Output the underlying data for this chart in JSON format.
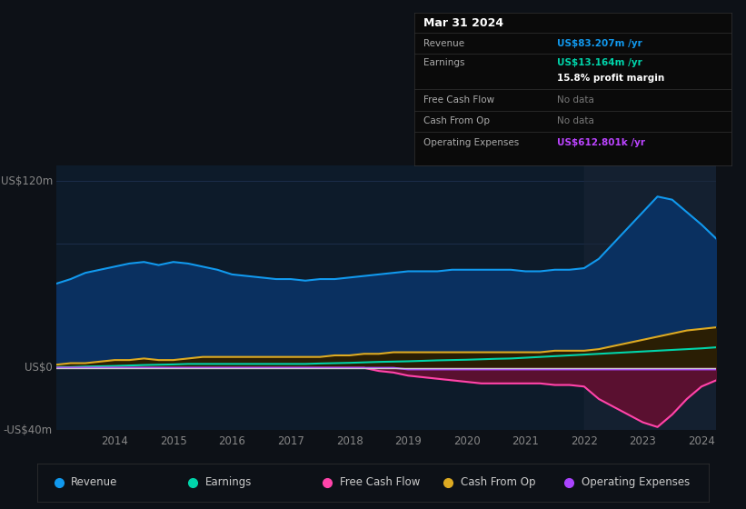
{
  "background_color": "#0d1117",
  "plot_bg_color": "#0d1b2a",
  "grid_color": "#1e3050",
  "title_box": {
    "date": "Mar 31 2024",
    "rows": [
      {
        "label": "Revenue",
        "value": "US$83.207m /yr",
        "value_color": "#1199ee",
        "nodata": false
      },
      {
        "label": "Earnings",
        "value": "US$13.164m /yr",
        "value_color": "#00d4aa",
        "nodata": false
      },
      {
        "label": "",
        "value": "15.8% profit margin",
        "value_color": "#ffffff",
        "nodata": false
      },
      {
        "label": "Free Cash Flow",
        "value": "No data",
        "value_color": "#777777",
        "nodata": true
      },
      {
        "label": "Cash From Op",
        "value": "No data",
        "value_color": "#777777",
        "nodata": true
      },
      {
        "label": "Operating Expenses",
        "value": "US$612.801k /yr",
        "value_color": "#bb44ff",
        "nodata": false
      }
    ]
  },
  "ylabel_top": "US$120m",
  "ylabel_zero": "US$0",
  "ylabel_bottom": "-US$40m",
  "ylim": [
    -40,
    130
  ],
  "years": [
    2013.0,
    2013.25,
    2013.5,
    2013.75,
    2014.0,
    2014.25,
    2014.5,
    2014.75,
    2015.0,
    2015.25,
    2015.5,
    2015.75,
    2016.0,
    2016.25,
    2016.5,
    2016.75,
    2017.0,
    2017.25,
    2017.5,
    2017.75,
    2018.0,
    2018.25,
    2018.5,
    2018.75,
    2019.0,
    2019.25,
    2019.5,
    2019.75,
    2020.0,
    2020.25,
    2020.5,
    2020.75,
    2021.0,
    2021.25,
    2021.5,
    2021.75,
    2022.0,
    2022.25,
    2022.5,
    2022.75,
    2023.0,
    2023.25,
    2023.5,
    2023.75,
    2024.0,
    2024.25
  ],
  "revenue": [
    54,
    57,
    61,
    63,
    65,
    67,
    68,
    66,
    68,
    67,
    65,
    63,
    60,
    59,
    58,
    57,
    57,
    56,
    57,
    57,
    58,
    59,
    60,
    61,
    62,
    62,
    62,
    63,
    63,
    63,
    63,
    63,
    62,
    62,
    63,
    63,
    64,
    70,
    80,
    90,
    100,
    110,
    108,
    100,
    92,
    83
  ],
  "earnings": [
    0.5,
    0.5,
    0.8,
    1.0,
    1.2,
    1.5,
    1.8,
    2.0,
    2.2,
    2.5,
    2.5,
    2.5,
    2.5,
    2.5,
    2.5,
    2.5,
    2.5,
    2.5,
    2.8,
    3.0,
    3.2,
    3.5,
    3.8,
    4.0,
    4.2,
    4.5,
    4.8,
    5.0,
    5.2,
    5.5,
    5.8,
    6.0,
    6.5,
    7.0,
    7.5,
    8.0,
    8.5,
    9.0,
    9.5,
    10.0,
    10.5,
    11.0,
    11.5,
    12.0,
    12.5,
    13.164
  ],
  "free_cash_flow": [
    0,
    0,
    0,
    0,
    0,
    0,
    0,
    0,
    0,
    0,
    0,
    0,
    0,
    0,
    0,
    0,
    0,
    0,
    0,
    0,
    0,
    0,
    -2,
    -3,
    -5,
    -6,
    -7,
    -8,
    -9,
    -10,
    -10,
    -10,
    -10,
    -10,
    -11,
    -11,
    -12,
    -20,
    -25,
    -30,
    -35,
    -38,
    -30,
    -20,
    -12,
    -8
  ],
  "cash_from_op": [
    2,
    3,
    3,
    4,
    5,
    5,
    6,
    5,
    5,
    6,
    7,
    7,
    7,
    7,
    7,
    7,
    7,
    7,
    7,
    8,
    8,
    9,
    9,
    10,
    10,
    10,
    10,
    10,
    10,
    10,
    10,
    10,
    10,
    10,
    11,
    11,
    11,
    12,
    14,
    16,
    18,
    20,
    22,
    24,
    25,
    26
  ],
  "op_expenses": [
    0,
    0,
    0,
    0,
    0,
    0,
    0,
    0,
    0,
    0,
    0,
    0,
    0,
    0,
    0,
    0,
    0,
    0,
    0,
    0,
    0,
    0,
    0,
    0,
    -1,
    -1,
    -1,
    -1,
    -1,
    -1,
    -1,
    -1,
    -1,
    -1,
    -1,
    -1,
    -1,
    -1,
    -1,
    -1,
    -1,
    -1,
    -1,
    -1,
    -1,
    -1
  ],
  "legend": [
    {
      "label": "Revenue",
      "color": "#1199ee"
    },
    {
      "label": "Earnings",
      "color": "#00d4aa"
    },
    {
      "label": "Free Cash Flow",
      "color": "#ff44aa"
    },
    {
      "label": "Cash From Op",
      "color": "#ddaa22"
    },
    {
      "label": "Operating Expenses",
      "color": "#aa44ff"
    }
  ],
  "xticks": [
    2014,
    2015,
    2016,
    2017,
    2018,
    2019,
    2020,
    2021,
    2022,
    2023,
    2024
  ],
  "revenue_color": "#1199ee",
  "revenue_fill": "#0a3060",
  "earnings_color": "#00d4aa",
  "earnings_fill": "#003322",
  "fcf_color": "#ff44aa",
  "fcf_fill": "#5a1030",
  "cop_color": "#ddaa22",
  "cop_fill": "#2a1e04",
  "opex_color": "#aa44ff",
  "opex_fill": "#330055",
  "zero_line_color": "#cccccc"
}
